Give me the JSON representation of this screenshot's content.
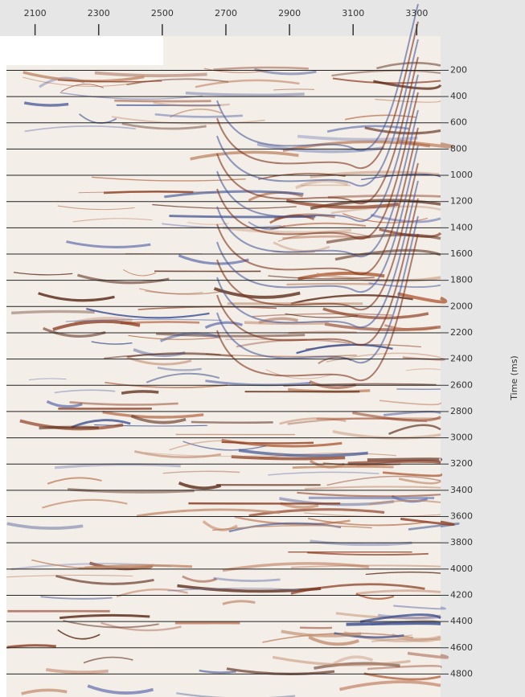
{
  "chart_data": {
    "type": "seismic",
    "ylabel": "Time (ms)",
    "xlim": [
      2010,
      3375
    ],
    "xticks": [
      2100,
      2300,
      2500,
      2700,
      2900,
      3100,
      3300
    ],
    "ylim": [
      -60,
      4975
    ],
    "yticks": [
      200,
      400,
      600,
      800,
      1000,
      1200,
      1400,
      1600,
      1800,
      2000,
      2200,
      2400,
      2600,
      2800,
      3000,
      3200,
      3400,
      3600,
      3800,
      4000,
      4200,
      4400,
      4600,
      4800
    ],
    "y_reversed": true,
    "grid": true
  }
}
